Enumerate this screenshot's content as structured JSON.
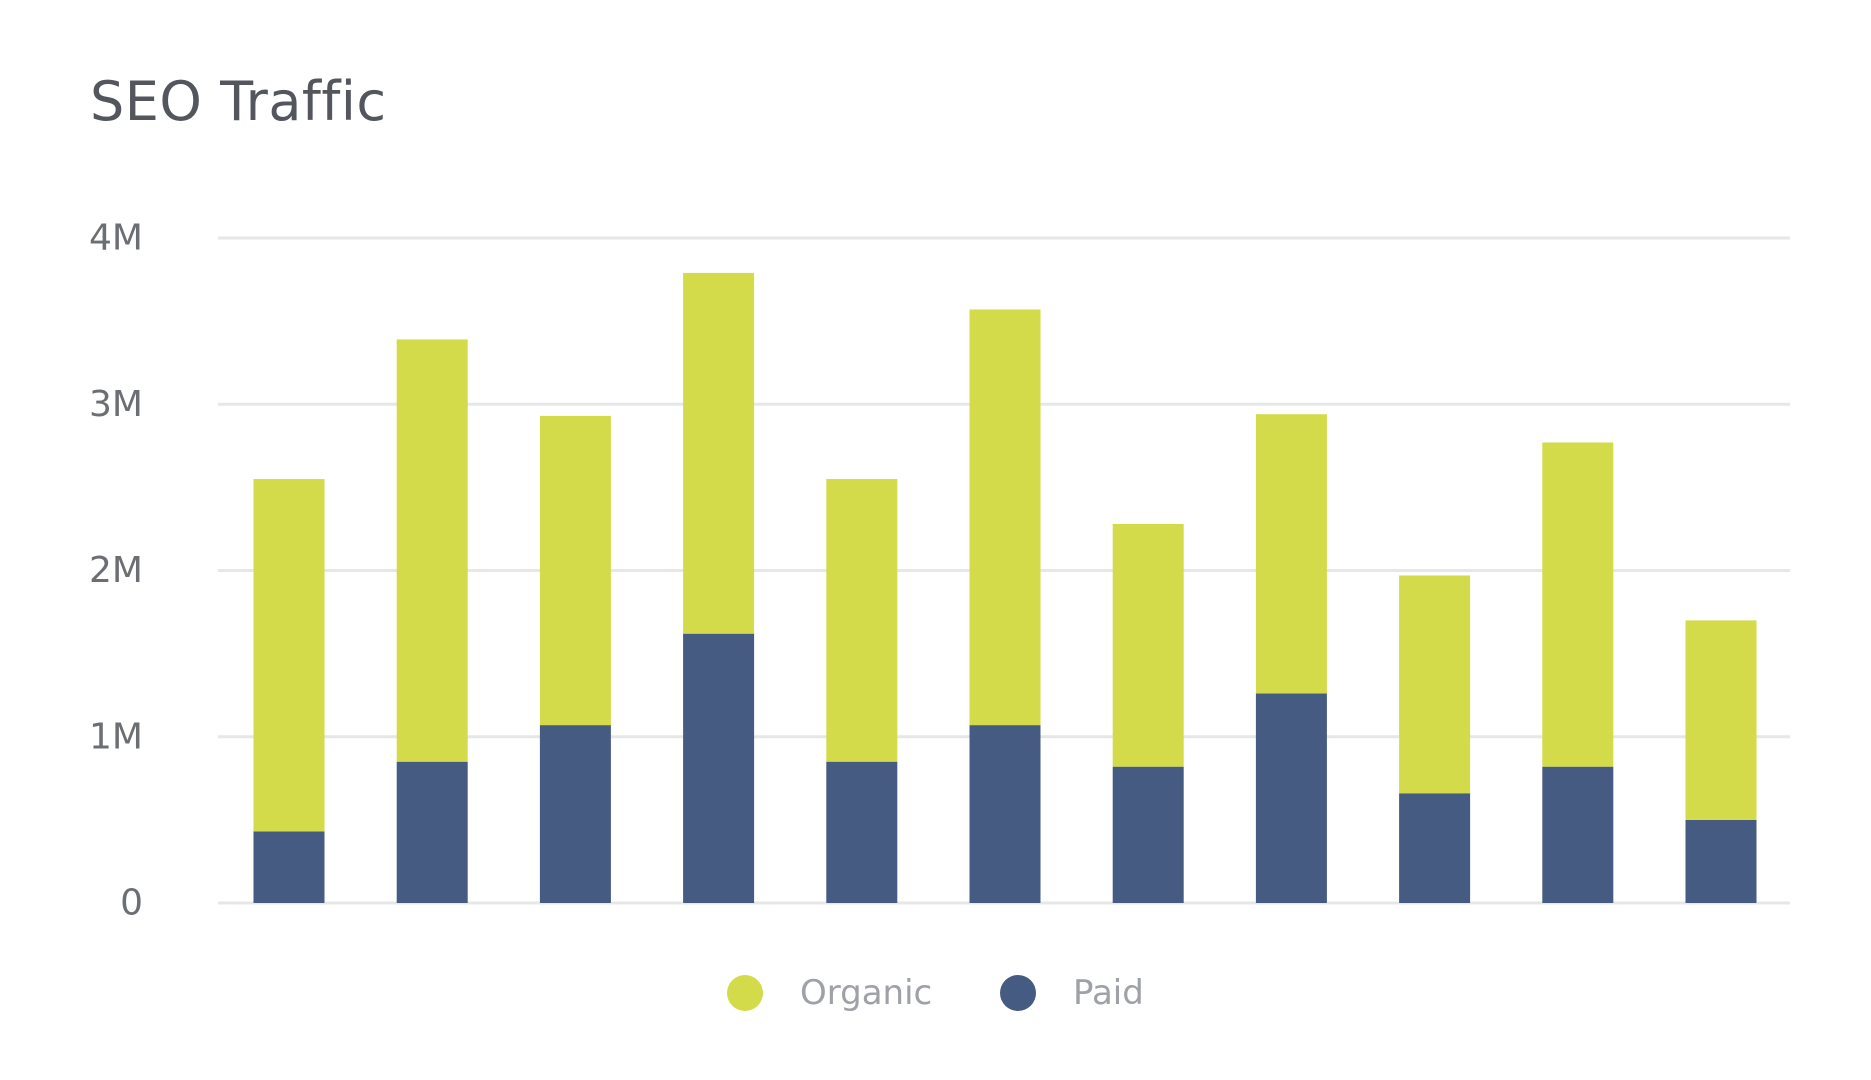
{
  "chart_data": {
    "type": "bar",
    "stacked": true,
    "title": "SEO Traffic",
    "xlabel": "",
    "ylabel": "",
    "categories": [
      "",
      "",
      "",
      "",
      "",
      "",
      "",
      "",
      "",
      "",
      ""
    ],
    "series": [
      {
        "name": "Paid",
        "color": "#465b82",
        "values": [
          0.43,
          0.85,
          1.07,
          1.62,
          0.85,
          1.07,
          0.82,
          1.26,
          0.66,
          0.82,
          0.5
        ]
      },
      {
        "name": "Organic",
        "color": "#d3db4a",
        "values": [
          2.12,
          2.54,
          1.86,
          2.17,
          1.7,
          2.5,
          1.46,
          1.68,
          1.31,
          1.95,
          1.2
        ]
      }
    ],
    "ylim": [
      0,
      4000000
    ],
    "yticks": [
      {
        "value": 0,
        "label": "0"
      },
      {
        "value": 1000000,
        "label": "1M"
      },
      {
        "value": 2000000,
        "label": "2M"
      },
      {
        "value": 3000000,
        "label": "3M"
      },
      {
        "value": 4000000,
        "label": "4M"
      }
    ],
    "value_scale": 1000000,
    "grid": true,
    "grid_color": "#e6e7e9",
    "legend_position": "bottom-center",
    "legend_order": [
      "Organic",
      "Paid"
    ]
  }
}
